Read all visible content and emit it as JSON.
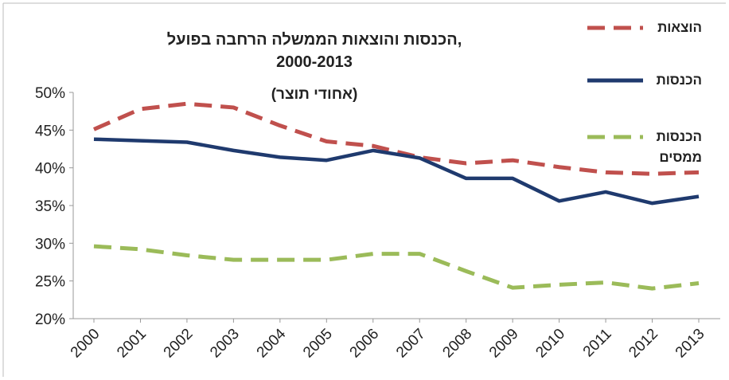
{
  "chart_data": {
    "type": "line",
    "title": [
      "הכנסות והוצאות הממשלה הרחבה בפועל,",
      "2000-2013"
    ],
    "subtitle": "(אחודי תוצר)",
    "categories": [
      "2000",
      "2001",
      "2002",
      "2003",
      "2004",
      "2005",
      "2006",
      "2007",
      "2008",
      "2009",
      "2010",
      "2011",
      "2012",
      "2013"
    ],
    "series": [
      {
        "name": "הוצאות",
        "color": "#c0504d",
        "dash": true,
        "values": [
          45.1,
          47.8,
          48.5,
          48.0,
          45.6,
          43.5,
          42.9,
          41.4,
          40.6,
          41.0,
          40.1,
          39.4,
          39.2,
          39.4
        ]
      },
      {
        "name": "הכנסות",
        "color": "#1f3a6e",
        "dash": false,
        "values": [
          43.8,
          43.6,
          43.4,
          42.3,
          41.4,
          41.0,
          42.3,
          41.3,
          38.6,
          38.6,
          35.6,
          36.8,
          35.3,
          36.2
        ]
      },
      {
        "name": "הכנסות ממסים",
        "color": "#9bbb59",
        "dash": true,
        "values": [
          29.6,
          29.2,
          28.4,
          27.8,
          27.8,
          27.8,
          28.6,
          28.6,
          26.3,
          24.1,
          24.5,
          24.8,
          24.0,
          24.7
        ]
      }
    ],
    "ylim": [
      20,
      50
    ],
    "yticks": [
      {
        "value": 20,
        "label": "20%"
      },
      {
        "value": 25,
        "label": "25%"
      },
      {
        "value": 30,
        "label": "30%"
      },
      {
        "value": 35,
        "label": "35%"
      },
      {
        "value": 40,
        "label": "40%"
      },
      {
        "value": 45,
        "label": "45%"
      },
      {
        "value": 50,
        "label": "50%"
      }
    ],
    "legend": "right"
  }
}
